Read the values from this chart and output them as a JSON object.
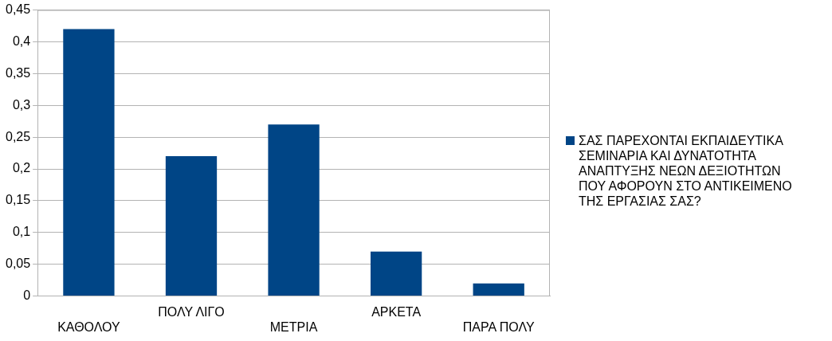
{
  "chart_data": {
    "type": "bar",
    "categories": [
      "ΚΑΘΟΛΟΥ",
      "ΠΟΛΥ ΛΙΓΟ",
      "ΜΕΤΡΙΑ",
      "ΑΡΚΕΤΑ",
      "ΠΑΡΑ ΠΟΛΥ"
    ],
    "series": [
      {
        "name": "ΣΑΣ ΠΑΡΕΧΟΝΤΑΙ ΕΚΠΑΙΔΕΥΤΙΚΑ ΣΕΜΙΝΑΡΙΑ ΚΑΙ ΔΥΝΑΤΟΤΗΤΑ ΑΝΑΠΤΥΞΗΣ ΝΕΩΝ ΔΕΞΙΟΤΗΤΩΝ ΠΟΥ ΑΦΟΡΟΥΝ ΣΤΟ ΑΝΤΙΚΕΙΜΕΝΟ ΤΗΣ ΕΡΓΑΣΙΑΣ ΣΑΣ?",
        "color": "#004586",
        "values": [
          0.42,
          0.22,
          0.27,
          0.07,
          0.02
        ]
      }
    ],
    "ylim": [
      0,
      0.45
    ],
    "yticks": [
      {
        "value": 0,
        "label": "0"
      },
      {
        "value": 0.05,
        "label": "0,05"
      },
      {
        "value": 0.1,
        "label": "0,1"
      },
      {
        "value": 0.15,
        "label": "0,15"
      },
      {
        "value": 0.2,
        "label": "0,2"
      },
      {
        "value": 0.25,
        "label": "0,25"
      },
      {
        "value": 0.3,
        "label": "0,3"
      },
      {
        "value": 0.35,
        "label": "0,35"
      },
      {
        "value": 0.4,
        "label": "0,4"
      },
      {
        "value": 0.45,
        "label": "0,45"
      }
    ],
    "grid": "y",
    "legend": "right"
  }
}
